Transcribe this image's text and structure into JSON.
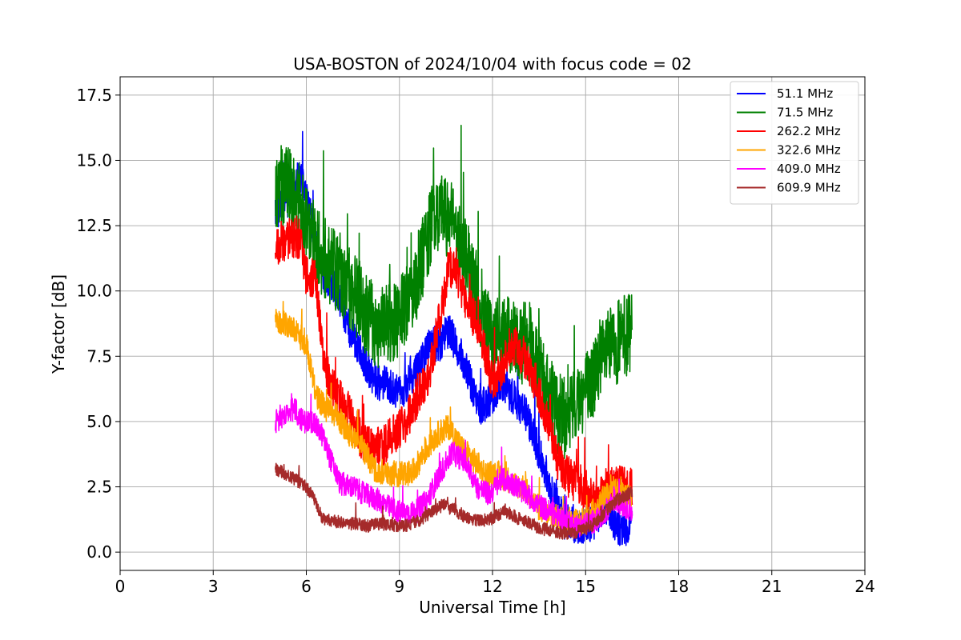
{
  "chart_data": {
    "type": "line",
    "title": "USA-BOSTON of 2024/10/04 with focus code = 02",
    "xlabel": "Universal Time [h]",
    "ylabel": "Y-factor [dB]",
    "xlim": [
      0,
      24
    ],
    "ylim": [
      -0.7,
      18.2
    ],
    "xticks": [
      0,
      3,
      6,
      9,
      12,
      15,
      18,
      21,
      24
    ],
    "xtick_labels": [
      "0",
      "3",
      "6",
      "9",
      "12",
      "15",
      "18",
      "21",
      "24"
    ],
    "yticks": [
      0,
      2.5,
      5,
      7.5,
      10,
      12.5,
      15,
      17.5
    ],
    "ytick_labels": [
      "0.0",
      "2.5",
      "5.0",
      "7.5",
      "10.0",
      "12.5",
      "15.0",
      "17.5"
    ],
    "grid": true,
    "legend_position": "top-right",
    "series": [
      {
        "name": " 51.1 MHz",
        "color": "#0000ff",
        "noise": 0.7,
        "x": [
          5.0,
          5.4,
          5.8,
          6.0,
          6.3,
          6.6,
          7.0,
          7.3,
          7.6,
          8.0,
          8.3,
          8.6,
          9.0,
          9.3,
          9.6,
          10.0,
          10.3,
          10.6,
          11.0,
          11.3,
          11.6,
          12.0,
          12.3,
          12.6,
          13.0,
          13.3,
          13.6,
          14.0,
          14.3,
          14.6,
          15.0,
          15.3,
          15.6,
          16.0,
          16.3,
          16.5
        ],
        "y": [
          13.0,
          13.5,
          14.5,
          13.5,
          12.0,
          10.5,
          10.0,
          8.8,
          8.0,
          7.0,
          6.5,
          6.5,
          6.0,
          6.5,
          7.0,
          8.0,
          8.0,
          8.5,
          7.5,
          6.5,
          5.5,
          6.0,
          6.5,
          6.0,
          5.5,
          4.5,
          3.5,
          2.0,
          1.2,
          1.0,
          1.0,
          1.2,
          1.8,
          1.0,
          0.8,
          1.2
        ]
      },
      {
        "name": " 71.5 MHz",
        "color": "#008000",
        "noise": 1.6,
        "x": [
          5.0,
          5.4,
          5.8,
          6.1,
          6.4,
          6.8,
          7.2,
          7.6,
          8.0,
          8.4,
          8.8,
          9.2,
          9.6,
          10.0,
          10.4,
          10.8,
          11.2,
          11.6,
          12.0,
          12.4,
          12.8,
          13.2,
          13.6,
          14.0,
          14.4,
          14.8,
          15.2,
          15.6,
          16.0,
          16.5
        ],
        "y": [
          14.0,
          14.0,
          13.5,
          12.5,
          11.5,
          11.0,
          10.5,
          9.8,
          9.0,
          8.5,
          8.8,
          9.5,
          10.5,
          12.5,
          13.0,
          12.5,
          11.0,
          9.5,
          8.0,
          8.5,
          8.0,
          8.0,
          6.5,
          5.5,
          5.0,
          6.0,
          6.5,
          7.5,
          8.0,
          8.5
        ]
      },
      {
        "name": "262.2 MHz",
        "color": "#ff0000",
        "noise": 0.8,
        "x": [
          5.0,
          5.4,
          5.8,
          6.0,
          6.3,
          6.6,
          7.0,
          7.3,
          7.7,
          8.0,
          8.4,
          8.8,
          9.2,
          9.6,
          10.0,
          10.3,
          10.6,
          10.9,
          11.2,
          11.6,
          12.0,
          12.3,
          12.6,
          13.0,
          13.4,
          13.8,
          14.1,
          14.5,
          14.9,
          15.3,
          15.7,
          16.0,
          16.5
        ],
        "y": [
          11.5,
          12.0,
          12.0,
          10.5,
          10.5,
          7.0,
          6.0,
          5.5,
          4.5,
          4.0,
          4.0,
          4.5,
          5.0,
          6.0,
          7.0,
          9.0,
          11.0,
          10.5,
          9.5,
          8.5,
          6.5,
          7.0,
          8.0,
          7.5,
          6.5,
          5.0,
          3.5,
          2.8,
          2.5,
          2.0,
          2.5,
          2.5,
          2.5
        ]
      },
      {
        "name": "322.6 MHz",
        "color": "#ffa500",
        "noise": 0.5,
        "x": [
          5.0,
          5.3,
          5.6,
          6.0,
          6.3,
          6.6,
          7.0,
          7.4,
          7.8,
          8.2,
          8.6,
          9.0,
          9.4,
          9.8,
          10.2,
          10.6,
          11.0,
          11.4,
          11.8,
          12.2,
          12.6,
          13.0,
          13.4,
          13.8,
          14.2,
          14.6,
          15.0,
          15.4,
          15.8,
          16.2,
          16.5
        ],
        "y": [
          8.8,
          8.8,
          8.5,
          8.0,
          6.0,
          5.5,
          5.2,
          4.5,
          4.0,
          3.2,
          3.0,
          3.0,
          3.0,
          3.8,
          4.5,
          4.8,
          4.0,
          3.5,
          3.0,
          3.0,
          2.6,
          2.5,
          1.8,
          1.4,
          1.3,
          1.2,
          1.2,
          1.8,
          2.5,
          2.2,
          2.0
        ]
      },
      {
        "name": "409.0 MHz",
        "color": "#ff00ff",
        "noise": 0.45,
        "x": [
          5.0,
          5.3,
          5.6,
          5.9,
          6.2,
          6.5,
          6.8,
          7.1,
          7.5,
          7.9,
          8.3,
          8.7,
          9.1,
          9.5,
          9.9,
          10.3,
          10.7,
          11.1,
          11.5,
          11.9,
          12.3,
          12.7,
          13.1,
          13.5,
          13.9,
          14.3,
          14.7,
          15.1,
          15.5,
          15.9,
          16.2,
          16.5
        ],
        "y": [
          5.0,
          5.2,
          5.5,
          5.0,
          5.0,
          4.5,
          3.5,
          2.6,
          2.5,
          2.2,
          2.0,
          1.7,
          1.5,
          1.5,
          2.0,
          3.0,
          3.8,
          3.5,
          2.5,
          2.2,
          2.8,
          2.6,
          2.2,
          1.8,
          1.5,
          1.2,
          1.0,
          1.1,
          1.3,
          2.0,
          1.8,
          1.6
        ]
      },
      {
        "name": "609.9 MHz",
        "color": "#a52a2a",
        "noise": 0.25,
        "x": [
          5.0,
          5.3,
          5.6,
          5.9,
          6.2,
          6.5,
          6.8,
          7.2,
          7.6,
          8.0,
          8.4,
          8.8,
          9.2,
          9.6,
          10.0,
          10.4,
          10.8,
          11.2,
          11.6,
          12.0,
          12.4,
          12.8,
          13.2,
          13.6,
          14.0,
          14.4,
          14.8,
          15.2,
          15.6,
          16.0,
          16.5
        ],
        "y": [
          3.2,
          3.0,
          2.8,
          2.6,
          2.2,
          1.3,
          1.2,
          1.1,
          1.1,
          1.0,
          1.1,
          1.0,
          1.0,
          1.2,
          1.5,
          1.8,
          1.6,
          1.3,
          1.2,
          1.3,
          1.6,
          1.3,
          1.1,
          0.9,
          0.8,
          0.7,
          0.8,
          1.0,
          1.5,
          2.0,
          2.3
        ]
      }
    ]
  }
}
